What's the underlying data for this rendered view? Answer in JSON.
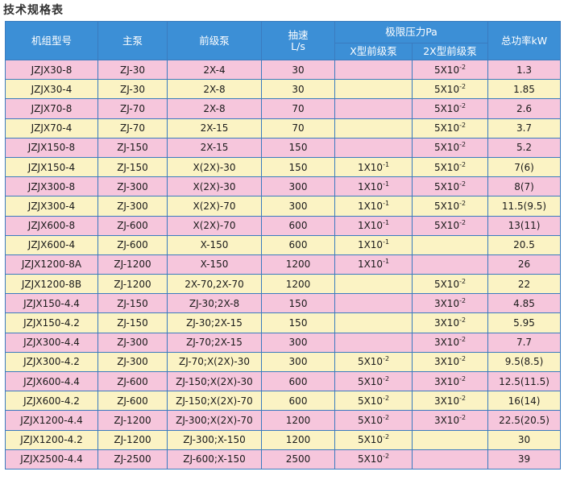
{
  "title": "技术规格表",
  "headers": {
    "model": "机组型号",
    "main_pump": "主泵",
    "backing_pump": "前级泵",
    "speed": "抽速",
    "speed_unit": "L/s",
    "ultimate_pressure": "极限压力Pa",
    "x_backing": "X型前级泵",
    "twox_backing": "2X型前级泵",
    "total_power": "总功率kW"
  },
  "rows": [
    {
      "model": "JZJX30-8",
      "main": "ZJ-30",
      "backing": "2X-4",
      "speed": "30",
      "px_base": "",
      "px_exp": "",
      "p2x_base": "5X10",
      "p2x_exp": "-2",
      "power": "1.3",
      "band": "pink"
    },
    {
      "model": "JZJX30-4",
      "main": "ZJ-30",
      "backing": "2X-8",
      "speed": "30",
      "px_base": "",
      "px_exp": "",
      "p2x_base": "5X10",
      "p2x_exp": "-2",
      "power": "1.85",
      "band": "yellow"
    },
    {
      "model": "JZJX70-8",
      "main": "ZJ-70",
      "backing": "2X-8",
      "speed": "70",
      "px_base": "",
      "px_exp": "",
      "p2x_base": "5X10",
      "p2x_exp": "-2",
      "power": "2.6",
      "band": "pink"
    },
    {
      "model": "JZJX70-4",
      "main": "ZJ-70",
      "backing": "2X-15",
      "speed": "70",
      "px_base": "",
      "px_exp": "",
      "p2x_base": "5X10",
      "p2x_exp": "-2",
      "power": "3.7",
      "band": "yellow"
    },
    {
      "model": "JZJX150-8",
      "main": "ZJ-150",
      "backing": "2X-15",
      "speed": "150",
      "px_base": "",
      "px_exp": "",
      "p2x_base": "5X10",
      "p2x_exp": "-2",
      "power": "5.2",
      "band": "pink"
    },
    {
      "model": "JZJX150-4",
      "main": "ZJ-150",
      "backing": "X(2X)-30",
      "speed": "150",
      "px_base": "1X10",
      "px_exp": "-1",
      "p2x_base": "5X10",
      "p2x_exp": "-2",
      "power": "7(6)",
      "band": "yellow"
    },
    {
      "model": "JZJX300-8",
      "main": "ZJ-300",
      "backing": "X(2X)-30",
      "speed": "300",
      "px_base": "1X10",
      "px_exp": "-1",
      "p2x_base": "5X10",
      "p2x_exp": "-2",
      "power": "8(7)",
      "band": "pink"
    },
    {
      "model": "JZJX300-4",
      "main": "ZJ-300",
      "backing": "X(2X)-70",
      "speed": "300",
      "px_base": "1X10",
      "px_exp": "-1",
      "p2x_base": "5X10",
      "p2x_exp": "-2",
      "power": "11.5(9.5)",
      "band": "yellow"
    },
    {
      "model": "JZJX600-8",
      "main": "ZJ-600",
      "backing": "X(2X)-70",
      "speed": "600",
      "px_base": "1X10",
      "px_exp": "-1",
      "p2x_base": "5X10",
      "p2x_exp": "-2",
      "power": "13(11)",
      "band": "pink"
    },
    {
      "model": "JZJX600-4",
      "main": "ZJ-600",
      "backing": "X-150",
      "speed": "600",
      "px_base": "1X10",
      "px_exp": "-1",
      "p2x_base": "",
      "p2x_exp": "",
      "power": "20.5",
      "band": "yellow"
    },
    {
      "model": "JZJX1200-8A",
      "main": "ZJ-1200",
      "backing": "X-150",
      "speed": "1200",
      "px_base": "1X10",
      "px_exp": "-1",
      "p2x_base": "",
      "p2x_exp": "",
      "power": "26",
      "band": "pink"
    },
    {
      "model": "JZJX1200-8B",
      "main": "ZJ-1200",
      "backing": "2X-70,2X-70",
      "speed": "1200",
      "px_base": "",
      "px_exp": "",
      "p2x_base": "5X10",
      "p2x_exp": "-2",
      "power": "22",
      "band": "yellow"
    },
    {
      "model": "JZJX150-4.4",
      "main": "ZJ-150",
      "backing": "ZJ-30;2X-8",
      "speed": "150",
      "px_base": "",
      "px_exp": "",
      "p2x_base": "3X10",
      "p2x_exp": "-2",
      "power": "4.85",
      "band": "pink"
    },
    {
      "model": "JZJX150-4.2",
      "main": "ZJ-150",
      "backing": "ZJ-30;2X-15",
      "speed": "150",
      "px_base": "",
      "px_exp": "",
      "p2x_base": "3X10",
      "p2x_exp": "-2",
      "power": "5.95",
      "band": "yellow"
    },
    {
      "model": "JZJX300-4.4",
      "main": "ZJ-300",
      "backing": "ZJ-70;2X-15",
      "speed": "300",
      "px_base": "",
      "px_exp": "",
      "p2x_base": "3X10",
      "p2x_exp": "-2",
      "power": "7.7",
      "band": "pink"
    },
    {
      "model": "JZJX300-4.2",
      "main": "ZJ-300",
      "backing": "ZJ-70;X(2X)-30",
      "speed": "300",
      "px_base": "5X10",
      "px_exp": "-2",
      "p2x_base": "3X10",
      "p2x_exp": "-2",
      "power": "9.5(8.5)",
      "band": "yellow"
    },
    {
      "model": "JZJX600-4.4",
      "main": "ZJ-600",
      "backing": "ZJ-150;X(2X)-30",
      "speed": "600",
      "px_base": "5X10",
      "px_exp": "-2",
      "p2x_base": "3X10",
      "p2x_exp": "-2",
      "power": "12.5(11.5)",
      "band": "pink"
    },
    {
      "model": "JZJX600-4.2",
      "main": "ZJ-600",
      "backing": "ZJ-150;X(2X)-70",
      "speed": "600",
      "px_base": "5X10",
      "px_exp": "-2",
      "p2x_base": "3X10",
      "p2x_exp": "-2",
      "power": "16(14)",
      "band": "yellow"
    },
    {
      "model": "JZJX1200-4.4",
      "main": "ZJ-1200",
      "backing": "ZJ-300;X(2X)-70",
      "speed": "1200",
      "px_base": "5X10",
      "px_exp": "-2",
      "p2x_base": "3X10",
      "p2x_exp": "-2",
      "power": "22.5(20.5)",
      "band": "pink"
    },
    {
      "model": "JZJX1200-4.2",
      "main": "ZJ-1200",
      "backing": "ZJ-300;X-150",
      "speed": "1200",
      "px_base": "5X10",
      "px_exp": "-2",
      "p2x_base": "",
      "p2x_exp": "",
      "power": "30",
      "band": "yellow"
    },
    {
      "model": "JZJX2500-4.4",
      "main": "ZJ-2500",
      "backing": "ZJ-600;X-150",
      "speed": "2500",
      "px_base": "5X10",
      "px_exp": "-2",
      "p2x_base": "",
      "p2x_exp": "",
      "power": "39",
      "band": "pink"
    }
  ],
  "colors": {
    "header_bg": "#3c8fd6",
    "row_pink": "#f6c6dc",
    "row_yellow": "#fbf3c4",
    "border": "#3a7bbf"
  }
}
